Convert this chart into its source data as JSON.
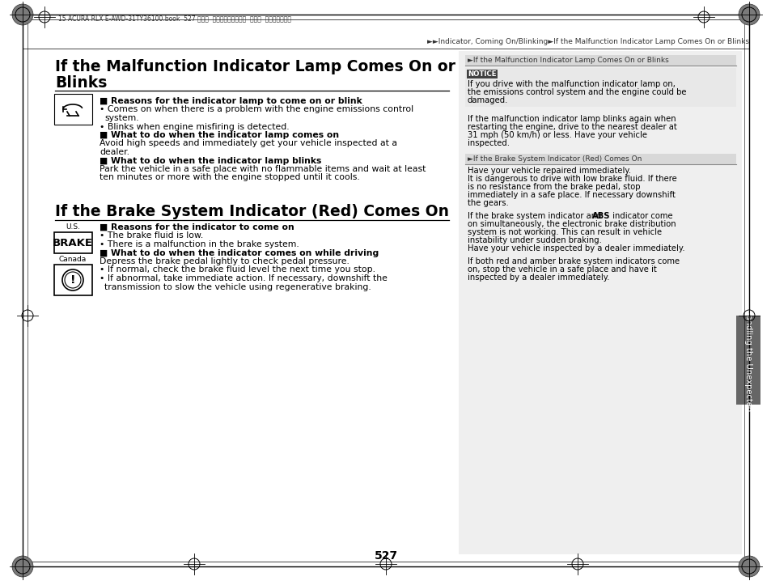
{
  "bg_color": "#ffffff",
  "page_number": "527",
  "header_text": "15 ACURA RLX E-AWD-31TY36100.book  527 ページ  ２０１４年８月６日  水曜日  午後１時５９分",
  "breadcrumb": "►►Indicator, Coming On/Blinking►If the Malfunction Indicator Lamp Comes On or Blinks",
  "s1_title_line1": "If the Malfunction Indicator Lamp Comes On or",
  "s1_title_line2": "Blinks",
  "s1_h1": "■ Reasons for the indicator lamp to come on or blink",
  "s1_b1a": "• Comes on when there is a problem with the engine emissions control",
  "s1_b1b": "   system.",
  "s1_b2": "• Blinks when engine misfiring is detected.",
  "s1_h2": "■ What to do when the indicator lamp comes on",
  "s1_t2a": "Avoid high speeds and immediately get your vehicle inspected at a",
  "s1_t2b": "dealer.",
  "s1_h3": "■ What to do when the indicator lamp blinks",
  "s1_t3a": "Park the vehicle in a safe place with no flammable items and wait at least",
  "s1_t3b": "ten minutes or more with the engine stopped until it cools.",
  "s2_title": "If the Brake System Indicator (Red) Comes On",
  "s2_h1": "■ Reasons for the indicator to come on",
  "s2_b1": "• The brake fluid is low.",
  "s2_b2": "• There is a malfunction in the brake system.",
  "s2_h2": "■ What to do when the indicator comes on while driving",
  "s2_t2": "Depress the brake pedal lightly to check pedal pressure.",
  "s2_b3": "• If normal, check the brake fluid level the next time you stop.",
  "s2_b4a": "• If abnormal, take immediate action. If necessary, downshift the",
  "s2_b4b": "   transmission to slow the vehicle using regenerative braking.",
  "rc_h1": "►If the Malfunction Indicator Lamp Comes On or Blinks",
  "notice_label": "NOTICE",
  "notice_t1": "If you drive with the malfunction indicator lamp on,",
  "notice_t2": "the emissions control system and the engine could be",
  "notice_t3": "damaged.",
  "rc_t1a": "If the malfunction indicator lamp blinks again when",
  "rc_t1b": "restarting the engine, drive to the nearest dealer at",
  "rc_t1c": "31 mph (50 km/h) or less. Have your vehicle",
  "rc_t1d": "inspected.",
  "rc_h2": "►If the Brake System Indicator (Red) Comes On",
  "rc_t2a": "Have your vehicle repaired immediately.",
  "rc_t2b": "It is dangerous to drive with low brake fluid. If there",
  "rc_t2c": "is no resistance from the brake pedal, stop",
  "rc_t2d": "immediately in a safe place. If necessary downshift",
  "rc_t2e": "the gears.",
  "rc_t3a": "If the brake system indicator and ",
  "rc_t3a_bold": "ABS",
  "rc_t3a_rest": " indicator come",
  "rc_t3b": "on simultaneously, the electronic brake distribution",
  "rc_t3c": "system is not working. This can result in vehicle",
  "rc_t3d": "instability under sudden braking.",
  "rc_t3e": "Have your vehicle inspected by a dealer immediately.",
  "rc_t4a": "If both red and amber brake system indicators come",
  "rc_t4b": "on, stop the vehicle in a safe place and have it",
  "rc_t4c": "inspected by a dealer immediately.",
  "side_label": "Handling the Unexpected",
  "us_label": "U.S.",
  "brake_label": "BRAKE",
  "canada_label": "Canada"
}
